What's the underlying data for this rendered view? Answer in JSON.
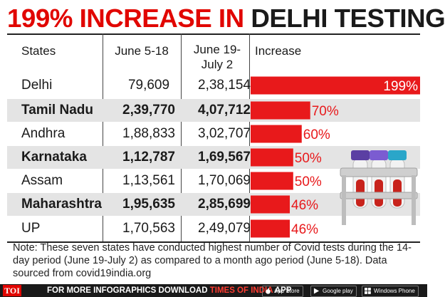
{
  "title": {
    "part1": "199% INCREASE IN ",
    "part2": "DELHI TESTING"
  },
  "columns": [
    "States",
    "June 5-18",
    "June 19-\nJuly 2",
    "Increase"
  ],
  "chart_data": {
    "type": "table",
    "title": "199% INCREASE IN DELHI TESTING",
    "rows": [
      {
        "state": "Delhi",
        "june": "79,609",
        "july": "2,38,154",
        "increase": 199,
        "label": "199%"
      },
      {
        "state": "Tamil Nadu",
        "june": "2,39,770",
        "july": "4,07,712",
        "increase": 70,
        "label": "70%"
      },
      {
        "state": "Andhra",
        "june": "1,88,833",
        "july": "3,02,707",
        "increase": 60,
        "label": "60%"
      },
      {
        "state": "Karnataka",
        "june": "1,12,787",
        "july": "1,69,567",
        "increase": 50,
        "label": "50%"
      },
      {
        "state": "Assam",
        "june": "1,13,561",
        "july": "1,70,069",
        "increase": 50,
        "label": "50%"
      },
      {
        "state": "Maharashtra",
        "june": "1,95,635",
        "july": "2,85,699",
        "increase": 46,
        "label": "46%"
      },
      {
        "state": "UP",
        "june": "1,70,563",
        "july": "2,49,079",
        "increase": 46,
        "label": "46%"
      }
    ],
    "bar_color": "#e8191b"
  },
  "note": "Note: These seven states have conducted highest number of Covid tests during the 14-day period (June 19-July 2) as compared to a month ago period (June 5-18). Data sourced from covid19india.org",
  "footer": {
    "logo": "TOI",
    "text_white": "FOR MORE  INFOGRAPHICS DOWNLOAD ",
    "text_red": "TIMES OF INDIA",
    "text_app": " APP",
    "badges": [
      "App Store",
      "Google play",
      "Windows Phone"
    ]
  }
}
